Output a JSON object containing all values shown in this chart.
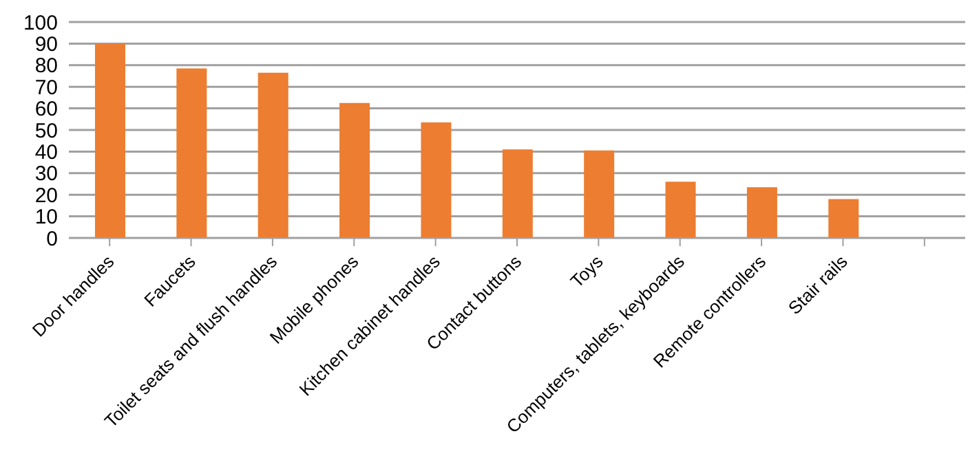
{
  "chart_data": {
    "type": "bar",
    "categories": [
      "Door handles",
      "Faucets",
      "Toilet seats and flush handles",
      "Mobile phones",
      "Kitchen cabinet handles",
      "Contact buttons",
      "Toys",
      "Computers, tablets, keyboards",
      "Remote controllers",
      "Stair rails",
      null
    ],
    "values": [
      90,
      78.5,
      76.5,
      62.5,
      53.5,
      41,
      40.5,
      26,
      23.5,
      18,
      null
    ],
    "color": "#ed7d31",
    "ylim": [
      0,
      100
    ],
    "yticks": [
      0,
      10,
      20,
      30,
      40,
      50,
      60,
      70,
      80,
      90,
      100
    ],
    "grid": "y"
  }
}
